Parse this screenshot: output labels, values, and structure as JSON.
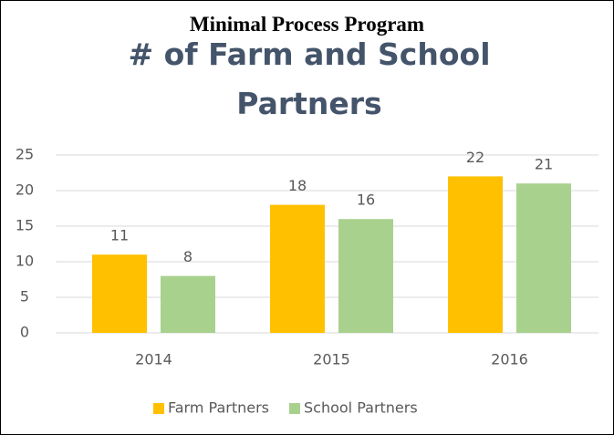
{
  "chart_data": {
    "type": "bar",
    "suptitle": "Minimal Process Program",
    "title": "# of Farm and School Partners",
    "categories": [
      "2014",
      "2015",
      "2016"
    ],
    "series": [
      {
        "name": "Farm Partners",
        "color": "#FFC000",
        "values": [
          11,
          18,
          22
        ]
      },
      {
        "name": "School Partners",
        "color": "#A9D18E",
        "values": [
          8,
          16,
          21
        ]
      }
    ],
    "ylim": [
      0,
      25
    ],
    "yticks": [
      0,
      5,
      10,
      15,
      20,
      25
    ],
    "grid": true,
    "legend": "bottom"
  }
}
